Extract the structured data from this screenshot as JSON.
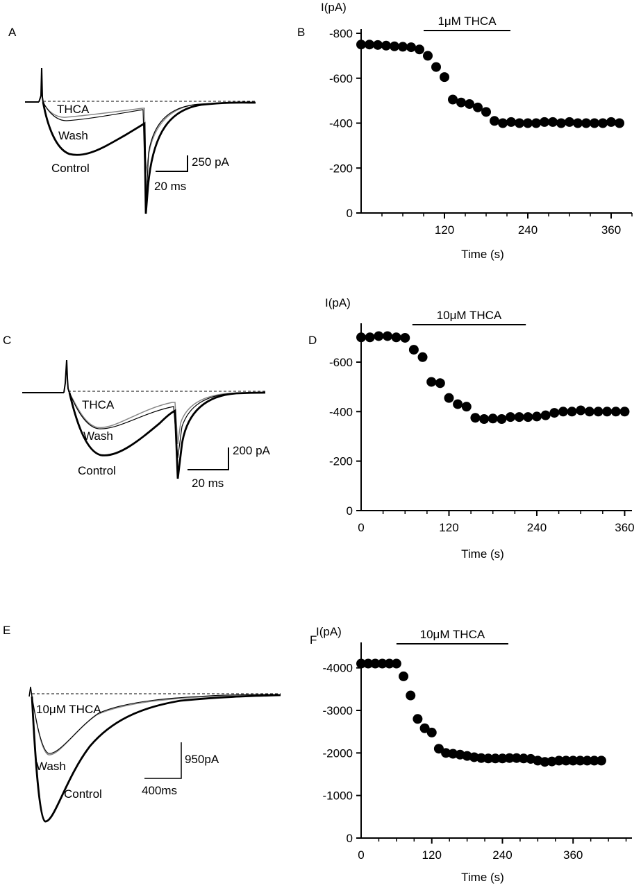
{
  "panels": {
    "A": {
      "letter": "A",
      "labels": {
        "thca": "THCA",
        "wash": "Wash",
        "control": "Control"
      },
      "scale": {
        "y": "250 pA",
        "x": "20 ms"
      }
    },
    "C": {
      "letter": "C",
      "labels": {
        "thca": "THCA",
        "wash": "Wash",
        "control": "Control"
      },
      "scale": {
        "y": "200 pA",
        "x": "20 ms"
      }
    },
    "E": {
      "letter": "E",
      "labels": {
        "thca": "10μM THCA",
        "wash": "Wash",
        "control": "Control"
      },
      "scale": {
        "y": "950pA",
        "x": "400ms"
      }
    }
  },
  "chart_data": [
    {
      "panel": "B",
      "type": "scatter",
      "ylabel": "I(pA)",
      "xlabel": "Time (s)",
      "bar_label": "1μM THCA",
      "bar_range": [
        90,
        215
      ],
      "xlim": [
        0,
        390
      ],
      "ylim": [
        0,
        800
      ],
      "xticks": [
        "120",
        "240",
        "360"
      ],
      "yticks": [
        "-800",
        "-600",
        "-400",
        "-200",
        "0"
      ],
      "x": [
        0,
        12,
        24,
        36,
        48,
        60,
        72,
        84,
        96,
        108,
        120,
        132,
        144,
        156,
        168,
        180,
        192,
        204,
        216,
        228,
        240,
        252,
        264,
        276,
        288,
        300,
        312,
        324,
        336,
        348,
        360,
        372
      ],
      "y": [
        -750,
        -750,
        -748,
        -745,
        -742,
        -740,
        -738,
        -728,
        -700,
        -650,
        -605,
        -505,
        -492,
        -485,
        -470,
        -450,
        -410,
        -400,
        -405,
        -400,
        -400,
        -400,
        -405,
        -405,
        -400,
        -405,
        -400,
        -400,
        -400,
        -400,
        -405,
        -400
      ]
    },
    {
      "panel": "D",
      "type": "scatter",
      "ylabel": "I(pA)",
      "xlabel": "Time (s)",
      "bar_label": "10μM THCA",
      "bar_range": [
        70,
        225
      ],
      "xlim": [
        0,
        370
      ],
      "ylim": [
        0,
        740
      ],
      "xticks": [
        "0",
        "120",
        "240",
        "360"
      ],
      "yticks": [
        "-600",
        "-400",
        "-200",
        "0"
      ],
      "x": [
        0,
        12,
        24,
        36,
        48,
        60,
        72,
        84,
        96,
        108,
        120,
        132,
        144,
        156,
        168,
        180,
        192,
        204,
        216,
        228,
        240,
        252,
        264,
        276,
        288,
        300,
        312,
        324,
        336,
        348,
        360
      ],
      "y": [
        -700,
        -700,
        -705,
        -705,
        -700,
        -698,
        -650,
        -620,
        -520,
        -515,
        -455,
        -430,
        -420,
        -375,
        -370,
        -372,
        -370,
        -378,
        -378,
        -378,
        -380,
        -385,
        -395,
        -400,
        -400,
        -405,
        -400,
        -400,
        -400,
        -400,
        -400
      ]
    },
    {
      "panel": "F",
      "type": "scatter",
      "ylabel": "I(pA)",
      "xlabel": "Time (s)",
      "bar_label": "10μM THCA",
      "bar_range": [
        60,
        250
      ],
      "xlim": [
        0,
        460
      ],
      "ylim": [
        0,
        4500
      ],
      "xticks": [
        "0",
        "120",
        "240",
        "360"
      ],
      "yticks": [
        "-4000",
        "-3000",
        "-2000",
        "-1000",
        "0"
      ],
      "x": [
        0,
        12,
        24,
        36,
        48,
        60,
        72,
        84,
        96,
        108,
        120,
        132,
        144,
        156,
        168,
        180,
        192,
        204,
        216,
        228,
        240,
        252,
        264,
        276,
        288,
        300,
        312,
        324,
        336,
        348,
        360,
        372,
        384,
        396,
        408
      ],
      "y": [
        -4100,
        -4100,
        -4100,
        -4100,
        -4100,
        -4100,
        -3800,
        -3350,
        -2800,
        -2580,
        -2480,
        -2100,
        -2000,
        -1980,
        -1960,
        -1930,
        -1900,
        -1880,
        -1870,
        -1870,
        -1870,
        -1880,
        -1880,
        -1870,
        -1860,
        -1820,
        -1790,
        -1800,
        -1820,
        -1820,
        -1820,
        -1820,
        -1820,
        -1820,
        -1820
      ]
    }
  ]
}
